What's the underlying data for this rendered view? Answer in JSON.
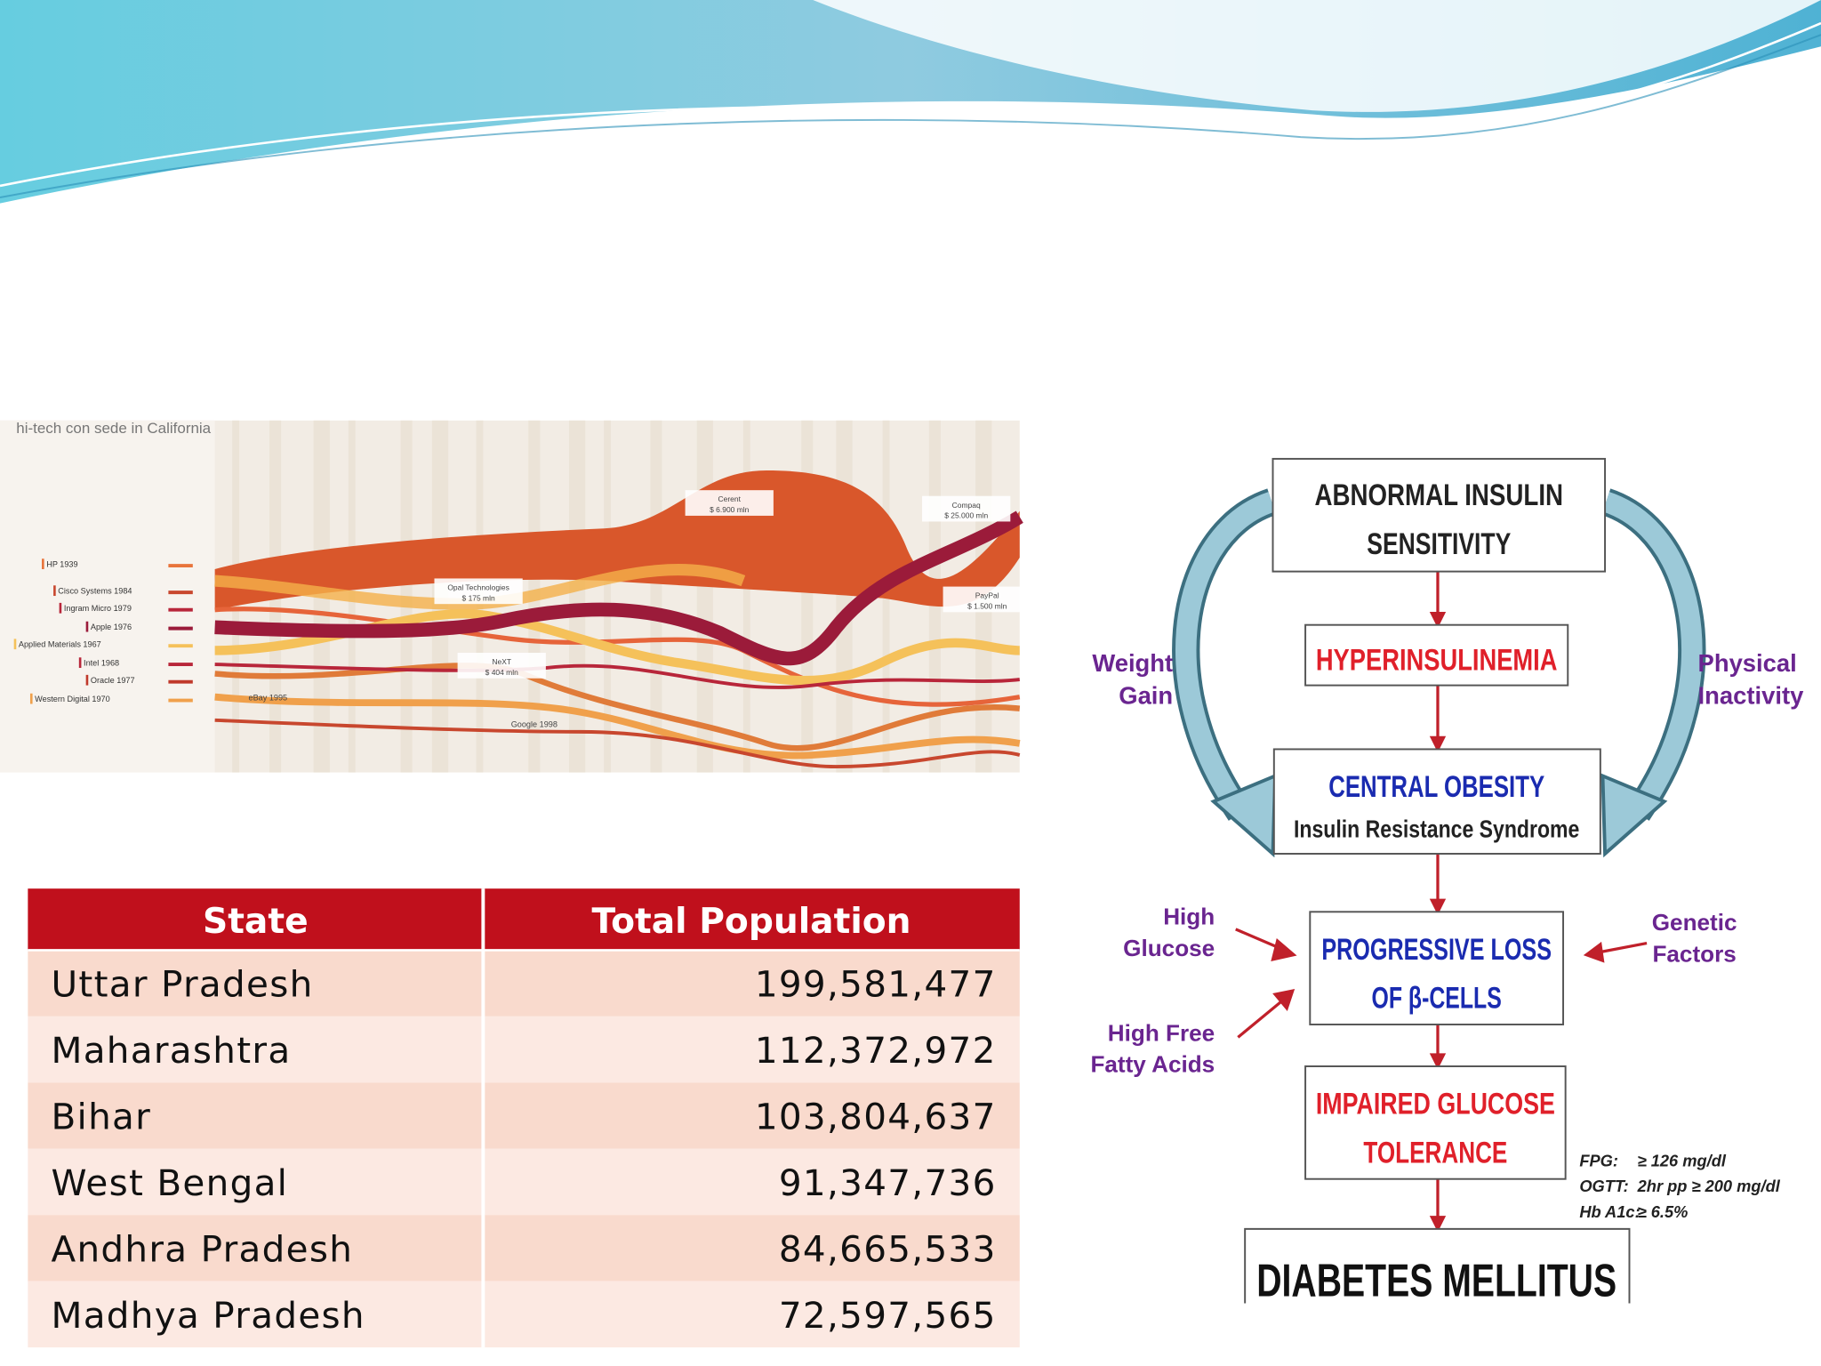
{
  "streamgraph": {
    "title": "hi-tech con sede in California",
    "legend": [
      "HP 1939",
      "Cisco Systems 1984",
      "Ingram Micro 1979",
      "Apple 1976",
      "Applied Materials 1967",
      "Intel 1968",
      "Oracle 1977",
      "Western Digital 1970"
    ],
    "labels": [
      "eBay 1995",
      "Google 1998"
    ],
    "annotations": [
      {
        "lines": [
          "Cerent",
          "$ 6.900 mln"
        ]
      },
      {
        "lines": [
          "Compaq",
          "$ 25.000 mln"
        ]
      },
      {
        "lines": [
          "Opal Technologies",
          "$ 175 mln"
        ]
      },
      {
        "lines": [
          "PayPal",
          "$ 1.500 mln"
        ]
      },
      {
        "lines": [
          "NeXT",
          "$ 404 mln"
        ]
      }
    ]
  },
  "table": {
    "header": [
      "State",
      "Total Population"
    ],
    "rows": [
      [
        "Uttar Pradesh",
        "199,581,477"
      ],
      [
        "Maharashtra",
        "112,372,972"
      ],
      [
        "Bihar",
        "103,804,637"
      ],
      [
        "West Bengal",
        "91,347,736"
      ],
      [
        "Andhra Pradesh",
        "84,665,533"
      ],
      [
        "Madhya Pradesh",
        "72,597,565"
      ]
    ]
  },
  "diagram": {
    "nodes": [
      {
        "lines": [
          "ABNORMAL INSULIN",
          "SENSITIVITY"
        ]
      },
      {
        "lines": [
          "HYPERINSULINEMIA"
        ]
      },
      {
        "lines": [
          "CENTRAL OBESITY",
          "Insulin Resistance Syndrome"
        ]
      },
      {
        "lines": [
          "PROGRESSIVE LOSS",
          "OF β-CELLS"
        ]
      },
      {
        "lines": [
          "IMPAIRED GLUCOSE",
          "TOLERANCE"
        ]
      },
      {
        "lines": [
          "DIABETES MELLITUS"
        ]
      }
    ],
    "side_labels": [
      {
        "lines": [
          "Weight",
          "Gain"
        ]
      },
      {
        "lines": [
          "Physical",
          "Inactivity"
        ]
      },
      {
        "lines": [
          "High",
          "Glucose"
        ]
      },
      {
        "lines": [
          "High Free",
          "Fatty Acids"
        ]
      },
      {
        "lines": [
          "Genetic",
          "Factors"
        ]
      }
    ],
    "criteria": [
      [
        "FPG:",
        "≥ 126 mg/dl"
      ],
      [
        "OGTT:",
        "2hr pp ≥ 200 mg/dl"
      ],
      [
        "Hb A1c:",
        "≥ 6.5%"
      ]
    ]
  }
}
